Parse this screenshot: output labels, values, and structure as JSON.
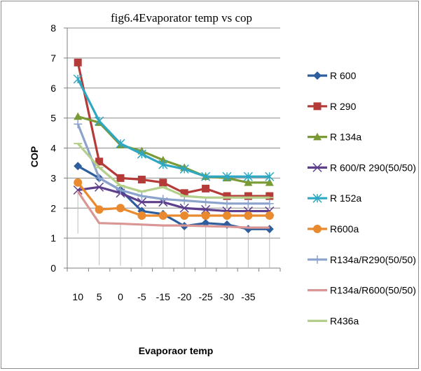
{
  "chart_data": {
    "type": "line",
    "title": "fig6.4Evaporator temp vs cop",
    "xlabel": "Evaporaor temp",
    "ylabel": "COP",
    "categories": [
      "10",
      "5",
      "0",
      "-5",
      "-15",
      "-20",
      "-25",
      "-30",
      "-35",
      ""
    ],
    "ylim": [
      0,
      8
    ],
    "yticks": [
      0,
      1,
      2,
      3,
      4,
      5,
      6,
      7,
      8
    ],
    "grid": "horizontal",
    "legend_position": "right",
    "error_bars": "lower, faint grey, on R134a/R600(50/50)",
    "series": [
      {
        "name": "R 600",
        "color": "#2e5e9e",
        "marker": "diamond",
        "values": [
          3.4,
          3.0,
          2.6,
          1.9,
          1.8,
          1.4,
          1.5,
          1.45,
          1.3,
          1.3
        ]
      },
      {
        "name": "R 290",
        "color": "#b43b38",
        "marker": "square",
        "values": [
          6.85,
          3.55,
          3.0,
          2.95,
          2.85,
          2.5,
          2.65,
          2.4,
          2.4,
          2.4
        ]
      },
      {
        "name": "R 134a",
        "color": "#7a9a36",
        "marker": "triangle",
        "values": [
          5.05,
          4.85,
          4.1,
          3.9,
          3.6,
          3.35,
          3.05,
          3.0,
          2.85,
          2.85
        ]
      },
      {
        "name": "R 600/R 290(50/50)",
        "color": "#5e3f8c",
        "marker": "x",
        "values": [
          2.6,
          2.7,
          2.5,
          2.2,
          2.2,
          2.0,
          1.95,
          1.9,
          1.9,
          1.9
        ]
      },
      {
        "name": "R 152a",
        "color": "#2ea7c2",
        "marker": "star",
        "values": [
          6.3,
          4.9,
          4.15,
          3.8,
          3.45,
          3.3,
          3.05,
          3.05,
          3.05,
          3.05
        ]
      },
      {
        "name": "R600a",
        "color": "#e88a2d",
        "marker": "circle",
        "values": [
          2.85,
          1.95,
          2.0,
          1.75,
          1.75,
          1.75,
          1.75,
          1.75,
          1.75,
          1.75
        ]
      },
      {
        "name": "R134a/R290(50/50)",
        "color": "#8aa2cc",
        "marker": "plus",
        "values": [
          4.8,
          3.0,
          2.6,
          2.4,
          2.3,
          2.25,
          2.2,
          2.15,
          2.15,
          2.15
        ]
      },
      {
        "name": "R134a/R600(50/50)",
        "color": "#d99694",
        "marker": "none",
        "values": [
          2.55,
          1.5,
          1.48,
          1.45,
          1.42,
          1.42,
          1.4,
          1.38,
          1.35,
          1.35
        ]
      },
      {
        "name": "R436a",
        "color": "#b3cf8a",
        "marker": "dash",
        "values": [
          4.15,
          3.35,
          2.75,
          2.55,
          2.7,
          2.4,
          2.35,
          2.35,
          2.35,
          2.35
        ]
      }
    ]
  }
}
